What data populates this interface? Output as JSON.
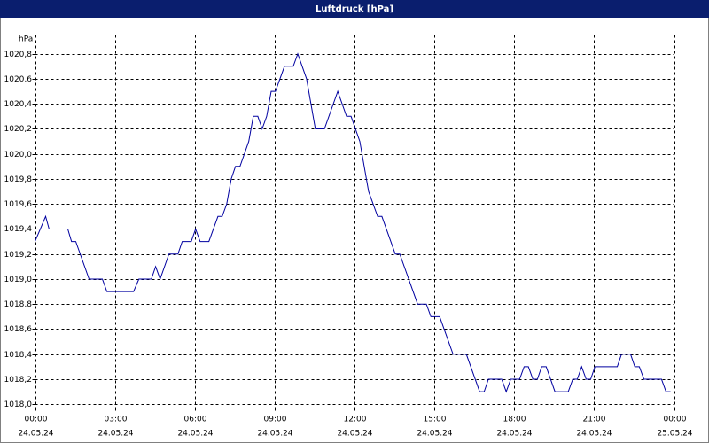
{
  "chart_data": {
    "type": "line",
    "title": "Luftdruck [hPa]",
    "y_label": "hPa",
    "x": [
      0,
      0.4,
      0.53,
      1.23,
      1.37,
      1.53,
      2.03,
      2.53,
      2.7,
      3.7,
      3.9,
      4.37,
      4.53,
      4.7,
      5.03,
      5.37,
      5.53,
      5.87,
      6.03,
      6.2,
      6.53,
      6.87,
      7.03,
      7.2,
      7.37,
      7.53,
      7.7,
      8.03,
      8.2,
      8.37,
      8.53,
      8.7,
      8.87,
      9.03,
      9.37,
      9.7,
      9.87,
      10.2,
      10.53,
      10.87,
      11.37,
      11.7,
      11.87,
      12.2,
      12.53,
      12.87,
      13.03,
      13.53,
      13.7,
      14.37,
      14.7,
      14.87,
      15.2,
      15.7,
      16.2,
      16.7,
      16.87,
      17.03,
      17.53,
      17.7,
      17.87,
      18.2,
      18.37,
      18.53,
      18.7,
      18.87,
      19.03,
      19.2,
      19.53,
      20.03,
      20.2,
      20.37,
      20.53,
      20.7,
      20.87,
      21.03,
      21.87,
      22.03,
      22.37,
      22.53,
      22.7,
      22.87,
      23.53,
      23.7,
      23.87
    ],
    "series": [
      {
        "name": "Luftdruck",
        "color": "#0000a0",
        "values": [
          1019.3,
          1019.5,
          1019.4,
          1019.4,
          1019.3,
          1019.3,
          1019.0,
          1019.0,
          1018.9,
          1018.9,
          1019.0,
          1019.0,
          1019.1,
          1019.0,
          1019.2,
          1019.2,
          1019.3,
          1019.3,
          1019.4,
          1019.3,
          1019.3,
          1019.5,
          1019.5,
          1019.6,
          1019.8,
          1019.9,
          1019.9,
          1020.1,
          1020.3,
          1020.3,
          1020.2,
          1020.3,
          1020.5,
          1020.5,
          1020.7,
          1020.7,
          1020.8,
          1020.6,
          1020.2,
          1020.2,
          1020.5,
          1020.3,
          1020.3,
          1020.1,
          1019.7,
          1019.5,
          1019.5,
          1019.2,
          1019.2,
          1018.8,
          1018.8,
          1018.7,
          1018.7,
          1018.4,
          1018.4,
          1018.1,
          1018.1,
          1018.2,
          1018.2,
          1018.1,
          1018.2,
          1018.2,
          1018.3,
          1018.3,
          1018.2,
          1018.2,
          1018.3,
          1018.3,
          1018.1,
          1018.1,
          1018.2,
          1018.2,
          1018.3,
          1018.2,
          1018.2,
          1018.3,
          1018.3,
          1018.4,
          1018.4,
          1018.3,
          1018.3,
          1018.2,
          1018.2,
          1018.1,
          1018.1
        ]
      }
    ],
    "xlim": [
      0,
      24
    ],
    "xticks": [
      {
        "value": 0,
        "label": "00:00"
      },
      {
        "value": 3,
        "label": "03:00"
      },
      {
        "value": 6,
        "label": "06:00"
      },
      {
        "value": 9,
        "label": "09:00"
      },
      {
        "value": 12,
        "label": "12:00"
      },
      {
        "value": 15,
        "label": "15:00"
      },
      {
        "value": 18,
        "label": "18:00"
      },
      {
        "value": 21,
        "label": "21:00"
      },
      {
        "value": 24,
        "label": "00:00"
      }
    ],
    "xtick_dates": [
      "24.05.24",
      "24.05.24",
      "24.05.24",
      "24.05.24",
      "24.05.24",
      "24.05.24",
      "24.05.24",
      "24.05.24",
      "25.05.24"
    ],
    "ylim": [
      1017.97,
      1020.95
    ],
    "yticks": [
      {
        "value": 1018.0,
        "label": "1018,0"
      },
      {
        "value": 1018.2,
        "label": "1018,2"
      },
      {
        "value": 1018.4,
        "label": "1018,4"
      },
      {
        "value": 1018.6,
        "label": "1018,6"
      },
      {
        "value": 1018.8,
        "label": "1018,8"
      },
      {
        "value": 1019.0,
        "label": "1019,0"
      },
      {
        "value": 1019.2,
        "label": "1019,2"
      },
      {
        "value": 1019.4,
        "label": "1019,4"
      },
      {
        "value": 1019.6,
        "label": "1019,6"
      },
      {
        "value": 1019.8,
        "label": "1019,8"
      },
      {
        "value": 1020.0,
        "label": "1020,0"
      },
      {
        "value": 1020.2,
        "label": "1020,2"
      },
      {
        "value": 1020.4,
        "label": "1020,4"
      },
      {
        "value": 1020.6,
        "label": "1020,6"
      },
      {
        "value": 1020.8,
        "label": "1020,8"
      }
    ],
    "grid": true
  }
}
